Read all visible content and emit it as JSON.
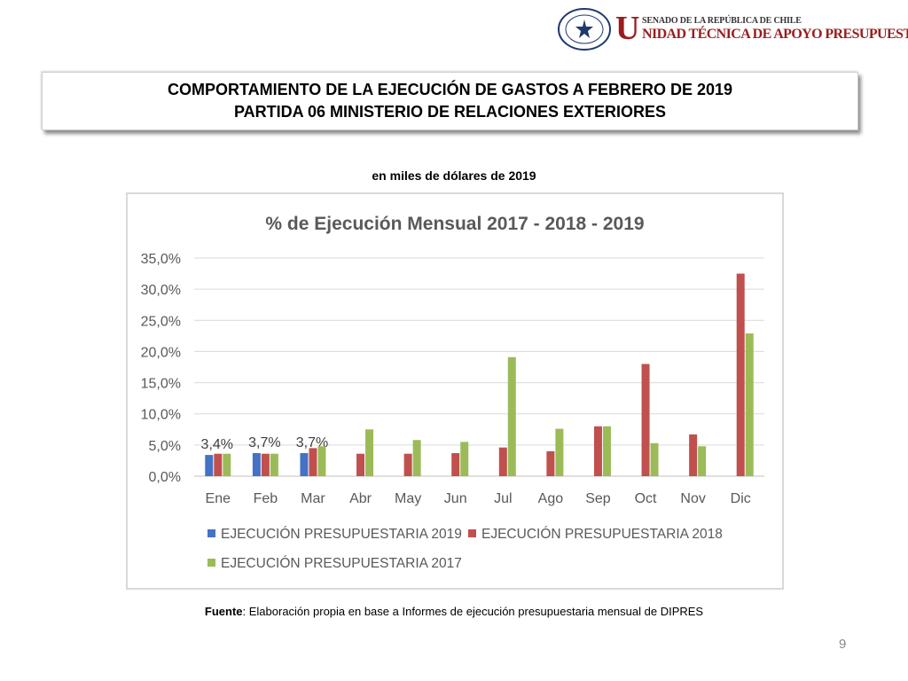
{
  "header": {
    "seal_text": "REPÚBLICA DE CHILE · SENADO",
    "brand_initial": "U",
    "brand_top": "SENADO DE LA REPÚBLICA DE CHILE",
    "brand_main": "NIDAD TÉCNICA DE APOYO PRESUPUESTARIO",
    "brand_color": "#9b1c1c"
  },
  "title": {
    "line1": "COMPORTAMIENTO DE LA EJECUCIÓN DE GASTOS A FEBRERO DE 2019",
    "line2": "PARTIDA 06 MINISTERIO DE RELACIONES EXTERIORES"
  },
  "subtitle": "en miles de dólares de 2019",
  "source": {
    "label": "Fuente",
    "text": ": Elaboración propia en base  a Informes de ejecución presupuestaria mensual de DIPRES"
  },
  "page_number": "9",
  "chart_data": {
    "type": "bar",
    "title": "% de Ejecución Mensual 2017 - 2018 - 2019",
    "categories": [
      "Ene",
      "Feb",
      "Mar",
      "Abr",
      "May",
      "Jun",
      "Jul",
      "Ago",
      "Sep",
      "Oct",
      "Nov",
      "Dic"
    ],
    "ylim": [
      0,
      35
    ],
    "yticks": [
      0,
      5,
      10,
      15,
      20,
      25,
      30,
      35
    ],
    "ytick_labels": [
      "0,0%",
      "5,0%",
      "10,0%",
      "15,0%",
      "20,0%",
      "25,0%",
      "30,0%",
      "35,0%"
    ],
    "grid": true,
    "legend_position": "bottom",
    "series": [
      {
        "name": "EJECUCIÓN PRESUPUESTARIA 2019",
        "color": "#4472c4",
        "values": [
          3.4,
          3.7,
          3.7,
          null,
          null,
          null,
          null,
          null,
          null,
          null,
          null,
          null
        ],
        "labels": [
          "3,4%",
          "3,7%",
          "3,7%",
          null,
          null,
          null,
          null,
          null,
          null,
          null,
          null,
          null
        ]
      },
      {
        "name": "EJECUCIÓN PRESUPUESTARIA 2018",
        "color": "#c0504d",
        "values": [
          3.6,
          3.6,
          4.5,
          3.6,
          3.6,
          3.7,
          4.6,
          4.0,
          8.0,
          18.0,
          6.7,
          32.5
        ]
      },
      {
        "name": "EJECUCIÓN PRESUPUESTARIA 2017",
        "color": "#9bbb59",
        "values": [
          3.6,
          3.6,
          4.8,
          7.5,
          5.8,
          5.5,
          19.1,
          7.6,
          8.0,
          5.3,
          4.8,
          22.9
        ]
      }
    ]
  }
}
